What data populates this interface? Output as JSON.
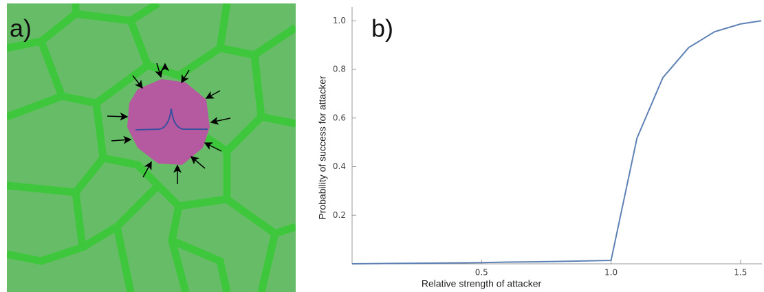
{
  "panel_a": {
    "label": "a)"
  },
  "panel_b": {
    "label": "b)"
  },
  "chart_data": {
    "type": "line",
    "x_label": "Relative strength of attacker",
    "y_label": "Probability of success for attacker",
    "x": [
      0,
      0.1,
      0.2,
      0.3,
      0.4,
      0.5,
      0.6,
      0.7,
      0.8,
      0.9,
      1.0,
      1.1,
      1.2,
      1.3,
      1.4,
      1.5,
      1.58
    ],
    "series": [
      {
        "color": "#5e81b5",
        "values": [
          0,
          0.001,
          0.002,
          0.003,
          0.004,
          0.005,
          0.007,
          0.008,
          0.01,
          0.012,
          0.014,
          0.517,
          0.766,
          0.89,
          0.955,
          0.987,
          1.0
        ]
      }
    ],
    "xlim": [
      0,
      1.58
    ],
    "ylim": [
      0,
      1.05
    ],
    "xticks": [
      0.5,
      {
        "value": 1,
        "label": "1.0"
      },
      1.5
    ],
    "yticks": [
      0.2,
      0.4,
      0.6,
      0.8,
      {
        "value": 1,
        "label": "1.0"
      }
    ]
  }
}
